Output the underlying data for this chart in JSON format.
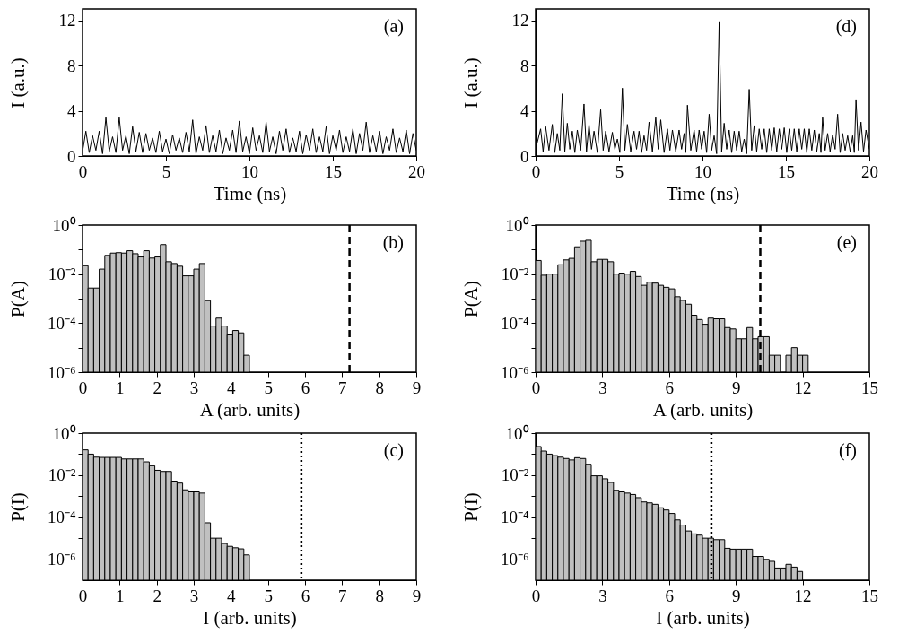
{
  "chart_data": [
    {
      "type": "line",
      "xlabel": "Time (ns)",
      "ylabel": "I (a.u.)",
      "annotations": [
        "(a)"
      ],
      "color": "#000000",
      "xlim": [
        0,
        20
      ],
      "xticks": [
        0,
        5,
        10,
        15,
        20
      ],
      "ylim": [
        0,
        13
      ],
      "yticks": [
        0,
        4,
        8,
        12
      ],
      "x": [
        0,
        0.2,
        0.4,
        0.6,
        0.8,
        1,
        1.2,
        1.4,
        1.6,
        1.8,
        2,
        2.2,
        2.4,
        2.6,
        2.8,
        3,
        3.2,
        3.4,
        3.6,
        3.8,
        4,
        4.2,
        4.4,
        4.6,
        4.8,
        5,
        5.2,
        5.4,
        5.6,
        5.8,
        6,
        6.2,
        6.4,
        6.6,
        6.8,
        7,
        7.2,
        7.4,
        7.6,
        7.8,
        8,
        8.2,
        8.4,
        8.6,
        8.8,
        9,
        9.2,
        9.4,
        9.6,
        9.8,
        10,
        10.2,
        10.4,
        10.6,
        10.8,
        11,
        11.2,
        11.4,
        11.6,
        11.8,
        12,
        12.2,
        12.4,
        12.6,
        12.8,
        13,
        13.2,
        13.4,
        13.6,
        13.8,
        14,
        14.2,
        14.4,
        14.6,
        14.8,
        15,
        15.2,
        15.4,
        15.6,
        15.8,
        16,
        16.2,
        16.4,
        16.6,
        16.8,
        17,
        17.2,
        17.4,
        17.6,
        17.8,
        18,
        18.2,
        18.4,
        18.6,
        18.8,
        19,
        19.2,
        19.4,
        19.6,
        19.8,
        20
      ],
      "values": [
        0.4,
        2.2,
        0.3,
        1.8,
        0.5,
        2.2,
        0.2,
        3.4,
        0.4,
        1.7,
        0.3,
        3.4,
        0.5,
        1.8,
        0.2,
        2.6,
        0.4,
        2.1,
        0.3,
        2.0,
        0.5,
        1.6,
        0.3,
        2.2,
        0.4,
        1.5,
        0.2,
        1.9,
        0.5,
        1.6,
        0.3,
        2.1,
        0.4,
        3.2,
        0.2,
        1.7,
        0.5,
        2.7,
        0.3,
        1.8,
        0.4,
        2.3,
        0.2,
        1.6,
        0.5,
        2.3,
        0.3,
        3.1,
        0.4,
        1.7,
        0.2,
        2.5,
        0.5,
        1.8,
        0.3,
        3.0,
        0.4,
        1.7,
        0.2,
        2.2,
        0.5,
        2.4,
        0.3,
        1.6,
        0.4,
        2.2,
        0.2,
        1.9,
        0.5,
        2.4,
        0.3,
        1.7,
        0.4,
        2.6,
        0.2,
        1.8,
        0.5,
        2.3,
        0.3,
        1.7,
        0.4,
        2.4,
        0.2,
        2.0,
        0.5,
        3.0,
        0.3,
        1.8,
        0.4,
        2.2,
        0.2,
        1.7,
        0.5,
        2.4,
        0.3,
        1.6,
        0.4,
        2.3,
        0.2,
        2.0,
        0.5
      ]
    },
    {
      "type": "line",
      "xlabel": "Time (ns)",
      "ylabel": "I (a.u.)",
      "annotations": [
        "(d)"
      ],
      "color": "#000000",
      "xlim": [
        0,
        20
      ],
      "xticks": [
        0,
        5,
        10,
        15,
        20
      ],
      "ylim": [
        0,
        13
      ],
      "yticks": [
        0,
        4,
        8,
        12
      ],
      "x": [
        0,
        0.3,
        0.45,
        0.6,
        0.8,
        1.0,
        1.15,
        1.3,
        1.45,
        1.6,
        1.75,
        1.9,
        2.05,
        2.2,
        2.35,
        2.5,
        2.7,
        2.9,
        3.05,
        3.2,
        3.35,
        3.5,
        3.7,
        3.9,
        4.05,
        4.2,
        4.4,
        4.6,
        4.75,
        4.9,
        5.05,
        5.2,
        5.35,
        5.5,
        5.7,
        5.9,
        6.05,
        6.2,
        6.35,
        6.5,
        6.65,
        6.8,
        7.0,
        7.2,
        7.35,
        7.5,
        7.7,
        7.9,
        8.05,
        8.2,
        8.4,
        8.6,
        8.75,
        8.9,
        9.0,
        9.1,
        9.3,
        9.5,
        9.65,
        9.8,
        9.95,
        10.1,
        10.25,
        10.4,
        10.55,
        10.7,
        10.85,
        11.0,
        11.15,
        11.3,
        11.45,
        11.6,
        11.75,
        11.9,
        12.05,
        12.2,
        12.35,
        12.5,
        12.65,
        12.8,
        12.95,
        13.1,
        13.25,
        13.4,
        13.55,
        13.7,
        13.85,
        14.0,
        14.15,
        14.3,
        14.45,
        14.6,
        14.75,
        14.9,
        15.05,
        15.2,
        15.35,
        15.5,
        15.65,
        15.8,
        15.95,
        16.1,
        16.25,
        16.4,
        16.55,
        16.7,
        16.85,
        17.0,
        17.1,
        17.2,
        17.35,
        17.5,
        17.65,
        17.8,
        17.95,
        18.1,
        18.25,
        18.4,
        18.55,
        18.7,
        18.85,
        19.0,
        19.1,
        19.2,
        19.35,
        19.5,
        19.65,
        19.8,
        20
      ],
      "values": [
        0.6,
        2.4,
        0.4,
        2.6,
        0.5,
        2.8,
        0.3,
        2.0,
        0.5,
        5.5,
        0.4,
        2.9,
        0.6,
        2.2,
        0.3,
        2.3,
        0.5,
        4.6,
        0.4,
        2.8,
        0.6,
        2.2,
        0.3,
        4.1,
        0.5,
        2.2,
        0.4,
        2.1,
        0.6,
        1.5,
        0.3,
        6.0,
        0.5,
        2.8,
        0.4,
        2.2,
        0.6,
        2.2,
        0.3,
        1.8,
        0.5,
        3.0,
        0.4,
        3.4,
        0.6,
        3.2,
        0.3,
        2.4,
        0.5,
        2.3,
        0.4,
        2.3,
        0.6,
        2.0,
        0.3,
        4.5,
        0.5,
        2.3,
        0.4,
        2.3,
        0.6,
        2.2,
        0.3,
        3.7,
        0.5,
        1.8,
        0.2,
        11.9,
        0.4,
        2.9,
        0.6,
        2.3,
        0.3,
        2.2,
        0.5,
        2.2,
        0.4,
        1.5,
        0.2,
        5.9,
        0.5,
        2.7,
        0.4,
        2.4,
        0.6,
        2.4,
        0.3,
        2.4,
        0.5,
        2.5,
        0.4,
        2.4,
        0.6,
        2.5,
        0.3,
        2.4,
        0.5,
        2.4,
        0.4,
        2.4,
        0.6,
        2.4,
        0.3,
        2.4,
        0.5,
        2.3,
        0.4,
        2.0,
        0.3,
        3.4,
        0.5,
        2.0,
        0.4,
        1.9,
        0.6,
        3.7,
        0.3,
        2.0,
        0.5,
        1.8,
        0.4,
        1.8,
        0.3,
        5.0,
        0.5,
        3.0,
        0.4,
        2.3,
        0.6
      ]
    },
    {
      "type": "histogram",
      "xlabel": "A (arb. units)",
      "ylabel": "P(A)",
      "annotations": [
        "(b)"
      ],
      "color": "#c0c0c0",
      "log": true,
      "xlim": [
        0,
        9
      ],
      "xticks": [
        0,
        1,
        2,
        3,
        4,
        5,
        6,
        7,
        8,
        9
      ],
      "ylim": [
        1e-06,
        1
      ],
      "yticks": [
        {
          "value": 1e-06,
          "label": "10⁻⁶"
        },
        {
          "value": 1e-05,
          "label": null
        },
        {
          "value": 0.0001,
          "label": "10⁻⁴"
        },
        {
          "value": 0.001,
          "label": null
        },
        {
          "value": 0.01,
          "label": "10⁻²"
        },
        {
          "value": 0.1,
          "label": null
        },
        {
          "value": 1,
          "label": "10⁰"
        }
      ],
      "ref_lines": [
        {
          "axis": "x",
          "value": 7.2,
          "line_style": "dashed"
        }
      ],
      "bins": [
        0,
        0.15,
        0.3,
        0.45,
        0.6,
        0.75,
        0.9,
        1.05,
        1.2,
        1.35,
        1.5,
        1.65,
        1.8,
        1.95,
        2.1,
        2.25,
        2.4,
        2.55,
        2.7,
        2.85,
        3,
        3.15,
        3.3,
        3.45,
        3.6,
        3.75,
        3.9,
        4.05,
        4.2,
        4.35,
        4.5
      ],
      "values": [
        0.022,
        0.0027,
        0.0027,
        0.016,
        0.058,
        0.072,
        0.075,
        0.072,
        0.09,
        0.068,
        0.05,
        0.09,
        0.045,
        0.05,
        0.16,
        0.032,
        0.027,
        0.021,
        0.0085,
        0.0085,
        0.016,
        0.027,
        0.00083,
        7.6e-05,
        0.00016,
        7.6e-05,
        3.3e-05,
        5e-05,
        4e-05,
        4.9e-06
      ]
    },
    {
      "type": "histogram",
      "xlabel": "A (arb. units)",
      "ylabel": "P(A)",
      "annotations": [
        "(e)"
      ],
      "color": "#c0c0c0",
      "log": true,
      "xlim": [
        0,
        15
      ],
      "xticks": [
        0,
        3,
        6,
        9,
        12,
        15
      ],
      "ylim": [
        1e-06,
        1
      ],
      "yticks": [
        {
          "value": 1e-06,
          "label": "10⁻⁶"
        },
        {
          "value": 1e-05,
          "label": null
        },
        {
          "value": 0.0001,
          "label": "10⁻⁴"
        },
        {
          "value": 0.001,
          "label": null
        },
        {
          "value": 0.01,
          "label": "10⁻²"
        },
        {
          "value": 0.1,
          "label": null
        },
        {
          "value": 1,
          "label": "10⁰"
        }
      ],
      "ref_lines": [
        {
          "axis": "x",
          "value": 10.1,
          "line_style": "dashed"
        }
      ],
      "bins": [
        0,
        0.25,
        0.5,
        0.75,
        1,
        1.25,
        1.5,
        1.75,
        2,
        2.25,
        2.5,
        2.75,
        3,
        3.25,
        3.5,
        3.75,
        4,
        4.25,
        4.5,
        4.75,
        5,
        5.25,
        5.5,
        5.75,
        6,
        6.25,
        6.5,
        6.75,
        7,
        7.25,
        7.5,
        7.75,
        8,
        8.25,
        8.5,
        8.75,
        9,
        9.25,
        9.5,
        9.75,
        10,
        10.25,
        10.5,
        10.75,
        11,
        11.25,
        11.5,
        11.75,
        12,
        12.25
      ],
      "values": [
        0.036,
        0.009,
        0.01,
        0.01,
        0.024,
        0.038,
        0.044,
        0.13,
        0.22,
        0.24,
        0.032,
        0.04,
        0.04,
        0.032,
        0.01,
        0.011,
        0.01,
        0.013,
        0.008,
        0.0035,
        0.0047,
        0.0043,
        0.0035,
        0.0029,
        0.0025,
        0.0012,
        0.00085,
        0.00059,
        0.00021,
        0.00014,
        9e-05,
        0.00016,
        0.00015,
        0.00015,
        6.6e-05,
        5.8e-05,
        2.3e-05,
        2.3e-05,
        6.6e-05,
        2.3e-05,
        2.8e-05,
        2.8e-05,
        4.9e-06,
        4.9e-06,
        null,
        4.9e-06,
        1e-05,
        4.9e-06,
        4.9e-06
      ]
    },
    {
      "type": "histogram",
      "xlabel": "I (arb. units)",
      "ylabel": "P(I)",
      "annotations": [
        "(c)"
      ],
      "color": "#c0c0c0",
      "log": true,
      "xlim": [
        0,
        9
      ],
      "xticks": [
        0,
        1,
        2,
        3,
        4,
        5,
        6,
        7,
        8,
        9
      ],
      "ylim": [
        1e-07,
        1
      ],
      "yticks": [
        {
          "value": 1e-06,
          "label": "10⁻⁶"
        },
        {
          "value": 1e-05,
          "label": null
        },
        {
          "value": 0.0001,
          "label": "10⁻⁴"
        },
        {
          "value": 0.001,
          "label": null
        },
        {
          "value": 0.01,
          "label": "10⁻²"
        },
        {
          "value": 0.1,
          "label": null
        },
        {
          "value": 1,
          "label": "10⁰"
        }
      ],
      "ref_lines": [
        {
          "axis": "x",
          "value": 5.9,
          "line_style": "dotted"
        }
      ],
      "bins": [
        0,
        0.15,
        0.3,
        0.45,
        0.6,
        0.75,
        0.9,
        1.05,
        1.2,
        1.35,
        1.5,
        1.65,
        1.8,
        1.95,
        2.1,
        2.25,
        2.4,
        2.55,
        2.7,
        2.85,
        3,
        3.15,
        3.3,
        3.45,
        3.6,
        3.75,
        3.9,
        4.05,
        4.2,
        4.35,
        4.5
      ],
      "values": [
        0.16,
        0.1,
        0.072,
        0.07,
        0.07,
        0.07,
        0.07,
        0.059,
        0.059,
        0.059,
        0.059,
        0.043,
        0.028,
        0.017,
        0.015,
        0.015,
        0.0052,
        0.0042,
        0.002,
        0.0016,
        0.0016,
        0.0014,
        5.4e-05,
        1e-05,
        1e-05,
        5.6e-06,
        4.1e-06,
        3.5e-06,
        3.1e-06,
        1.6e-06
      ]
    },
    {
      "type": "histogram",
      "xlabel": "I (arb. units)",
      "ylabel": "P(I)",
      "annotations": [
        "(f)"
      ],
      "color": "#c0c0c0",
      "log": true,
      "xlim": [
        0,
        15
      ],
      "xticks": [
        0,
        3,
        6,
        9,
        12,
        15
      ],
      "ylim": [
        1e-07,
        1
      ],
      "yticks": [
        {
          "value": 1e-06,
          "label": "10⁻⁶"
        },
        {
          "value": 1e-05,
          "label": null
        },
        {
          "value": 0.0001,
          "label": "10⁻⁴"
        },
        {
          "value": 0.001,
          "label": null
        },
        {
          "value": 0.01,
          "label": "10⁻²"
        },
        {
          "value": 0.1,
          "label": null
        },
        {
          "value": 1,
          "label": "10⁰"
        }
      ],
      "ref_lines": [
        {
          "axis": "x",
          "value": 7.9,
          "line_style": "dotted"
        }
      ],
      "bins": [
        0,
        0.25,
        0.5,
        0.75,
        1,
        1.25,
        1.5,
        1.75,
        2,
        2.25,
        2.5,
        2.75,
        3,
        3.25,
        3.5,
        3.75,
        4,
        4.25,
        4.5,
        4.75,
        5,
        5.25,
        5.5,
        5.75,
        6,
        6.25,
        6.5,
        6.75,
        7,
        7.25,
        7.5,
        7.75,
        8,
        8.25,
        8.5,
        8.75,
        9,
        9.25,
        9.5,
        9.75,
        10,
        10.25,
        10.5,
        10.75,
        11,
        11.25,
        11.5,
        11.75,
        12
      ],
      "values": [
        0.23,
        0.14,
        0.1,
        0.085,
        0.072,
        0.062,
        0.053,
        0.068,
        0.062,
        0.033,
        0.0093,
        0.0093,
        0.0067,
        0.0045,
        0.0019,
        0.0016,
        0.0014,
        0.0012,
        0.00085,
        0.00053,
        0.00048,
        0.00041,
        0.00028,
        0.00022,
        0.00015,
        7.4e-05,
        4.2e-05,
        2.2e-05,
        1.6e-05,
        1.4e-05,
        1e-05,
        1e-05,
        8.5e-06,
        8.5e-06,
        3.3e-06,
        3e-06,
        3e-06,
        3e-06,
        3e-06,
        1.35e-06,
        1.35e-06,
        9.8e-07,
        7.9e-07,
        3.8e-07,
        3.8e-07,
        5.7e-07,
        4.2e-07,
        2.6e-07
      ]
    }
  ]
}
